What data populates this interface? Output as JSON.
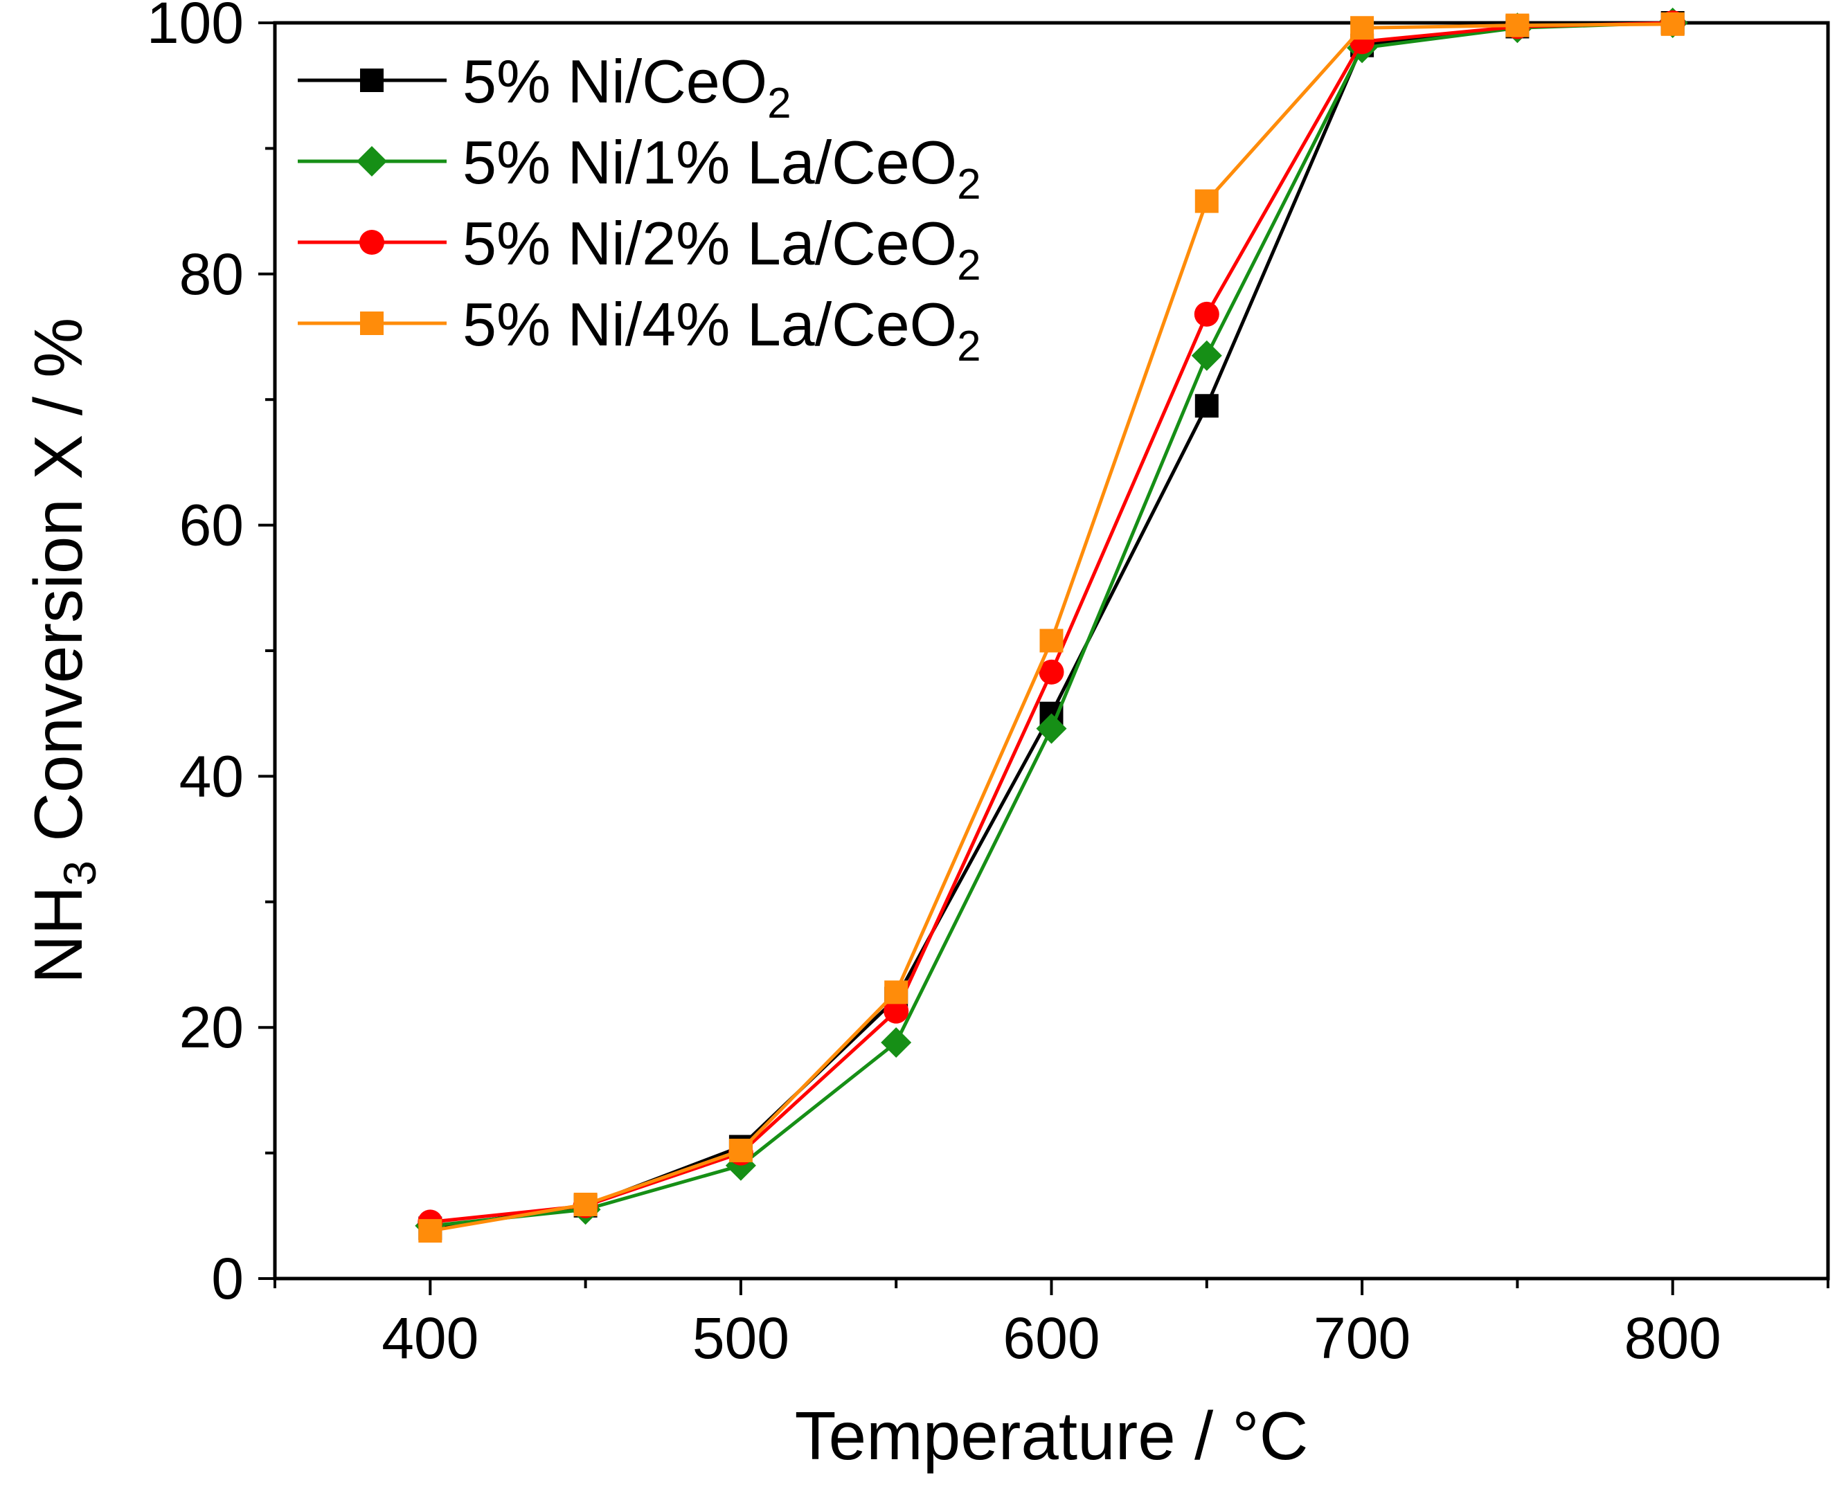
{
  "chart_data": {
    "type": "line",
    "title": "",
    "xlabel": "Temperature / °C",
    "ylabel": {
      "prefix": "NH",
      "sub": "3",
      "suffix": " Conversion X / %"
    },
    "xlim": [
      350,
      850
    ],
    "ylim": [
      0,
      100
    ],
    "xticks": [
      400,
      500,
      600,
      700,
      800
    ],
    "yticks": [
      0,
      20,
      40,
      60,
      80,
      100
    ],
    "x": [
      400,
      450,
      500,
      550,
      600,
      650,
      700,
      750,
      800
    ],
    "legend_position": "top-left",
    "series": [
      {
        "name": "5% Ni/CeO",
        "name_sub": "2",
        "color": "#000000",
        "marker": "square",
        "values": [
          4.0,
          5.8,
          10.5,
          22.3,
          45.0,
          69.5,
          98.2,
          99.7,
          100.0
        ]
      },
      {
        "name": "5% Ni/1% La/CeO",
        "name_sub": "2",
        "color": "#168f16",
        "marker": "diamond",
        "values": [
          4.2,
          5.5,
          9.0,
          18.8,
          43.8,
          73.5,
          98.0,
          99.6,
          100.0
        ]
      },
      {
        "name": "5% Ni/2% La/CeO",
        "name_sub": "2",
        "color": "#ff0000",
        "marker": "circle",
        "values": [
          4.5,
          5.8,
          10.0,
          21.3,
          48.3,
          76.8,
          98.5,
          99.7,
          100.0
        ]
      },
      {
        "name": "5% Ni/4% La/CeO",
        "name_sub": "2",
        "color": "#ff8c0a",
        "marker": "square",
        "values": [
          3.8,
          5.9,
          10.2,
          22.8,
          50.8,
          85.8,
          99.6,
          99.8,
          99.9
        ]
      }
    ]
  }
}
